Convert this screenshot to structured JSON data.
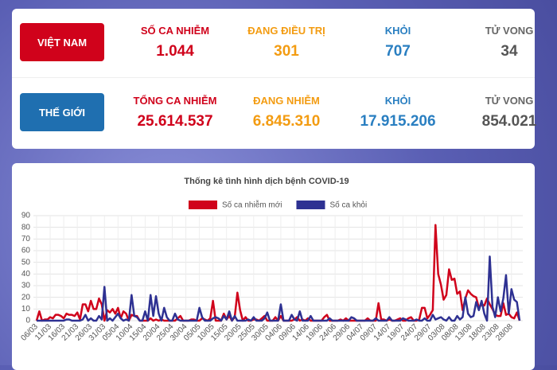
{
  "stats": {
    "vietnam": {
      "label": "VIỆT NAM",
      "items": [
        {
          "label": "SỐ CA NHIỄM",
          "value": "1.044"
        },
        {
          "label": "ĐANG ĐIỀU TRỊ",
          "value": "301"
        },
        {
          "label": "KHỎI",
          "value": "707"
        },
        {
          "label": "TỬ VONG",
          "value": "34"
        }
      ]
    },
    "world": {
      "label": "THẾ GIỚI",
      "items": [
        {
          "label": "TỔNG CA NHIỄM",
          "value": "25.614.537"
        },
        {
          "label": "ĐANG NHIỄM",
          "value": "6.845.310"
        },
        {
          "label": "KHỎI",
          "value": "17.915.206"
        },
        {
          "label": "TỬ VONG",
          "value": "854.021"
        }
      ]
    }
  },
  "chart_data": {
    "type": "line",
    "title": "Thống kê tình hình dịch bệnh COVID-19",
    "categories": [
      "06/03",
      null,
      null,
      null,
      null,
      "11/03",
      null,
      null,
      null,
      null,
      "16/03",
      null,
      null,
      null,
      null,
      "21/03",
      null,
      null,
      null,
      null,
      "26/03",
      null,
      null,
      null,
      null,
      "31/03",
      null,
      null,
      null,
      null,
      "05/04",
      null,
      null,
      null,
      null,
      "10/04",
      null,
      null,
      null,
      null,
      "15/04",
      null,
      null,
      null,
      null,
      "20/04",
      null,
      null,
      null,
      null,
      "25/04",
      null,
      null,
      null,
      null,
      "30/04",
      null,
      null,
      null,
      null,
      "05/05",
      null,
      null,
      null,
      null,
      "10/05",
      null,
      null,
      null,
      null,
      "15/05",
      null,
      null,
      null,
      null,
      "20/05",
      null,
      null,
      null,
      null,
      "25/05",
      null,
      null,
      null,
      null,
      "30/05",
      null,
      null,
      null,
      null,
      "04/06",
      null,
      null,
      null,
      null,
      "09/06",
      null,
      null,
      null,
      null,
      "14/06",
      null,
      null,
      null,
      null,
      "19/06",
      null,
      null,
      null,
      null,
      "24/06",
      null,
      null,
      null,
      null,
      "29/06",
      null,
      null,
      null,
      null,
      "04/07",
      null,
      null,
      null,
      null,
      "09/07",
      null,
      null,
      null,
      null,
      "14/07",
      null,
      null,
      null,
      null,
      "19/07",
      null,
      null,
      null,
      null,
      "24/07",
      null,
      null,
      null,
      null,
      "29/07",
      null,
      null,
      null,
      null,
      "03/08",
      null,
      null,
      null,
      null,
      "08/08",
      null,
      null,
      null,
      null,
      "13/08",
      null,
      null,
      null,
      null,
      "18/08",
      null,
      null,
      null,
      null,
      "23/08",
      null,
      null,
      null,
      null,
      "28/08",
      null,
      null,
      null
    ],
    "series": [
      {
        "name": "Số ca nhiễm mới",
        "color": "#d0021b",
        "values": [
          0,
          8,
          0,
          1,
          1,
          3,
          2,
          5,
          5,
          4,
          2,
          6,
          5,
          5,
          4,
          7,
          1,
          14,
          14,
          8,
          17,
          10,
          10,
          19,
          14,
          0,
          9,
          7,
          10,
          6,
          11,
          2,
          8,
          6,
          0,
          5,
          4,
          4,
          0,
          0,
          0,
          0,
          2,
          0,
          1,
          0,
          1,
          0,
          0,
          0,
          0,
          0,
          2,
          4,
          0,
          0,
          0,
          1,
          1,
          0,
          0,
          2,
          1,
          0,
          2,
          17,
          0,
          0,
          0,
          6,
          1,
          4,
          0,
          3,
          24,
          9,
          0,
          3,
          0,
          0,
          1,
          1,
          0,
          2,
          4,
          0,
          0,
          0,
          3,
          0,
          4,
          0,
          0,
          0,
          0,
          1,
          3,
          0,
          1,
          0,
          2,
          0,
          0,
          0,
          0,
          0,
          3,
          5,
          0,
          0,
          0,
          0,
          1,
          0,
          2,
          0,
          0,
          0,
          0,
          0,
          0,
          0,
          2,
          0,
          0,
          0,
          15,
          1,
          1,
          0,
          1,
          0,
          0,
          1,
          2,
          0,
          0,
          2,
          3,
          0,
          0,
          1,
          11,
          11,
          2,
          5,
          9,
          82,
          40,
          31,
          18,
          22,
          44,
          35,
          36,
          23,
          25,
          9,
          19,
          26,
          23,
          21,
          20,
          11,
          14,
          13,
          19,
          14,
          10,
          5,
          4,
          4,
          15,
          5,
          6,
          3,
          2,
          7,
          0
        ]
      },
      {
        "name": "Số ca khỏi",
        "color": "#2e3192",
        "values": [
          0,
          0,
          0,
          0,
          0,
          0,
          0,
          0,
          0,
          0,
          0,
          1,
          1,
          0,
          0,
          0,
          0,
          1,
          5,
          0,
          2,
          0,
          0,
          4,
          1,
          29,
          0,
          2,
          0,
          3,
          6,
          2,
          0,
          1,
          0,
          22,
          4,
          3,
          0,
          0,
          8,
          0,
          22,
          4,
          21,
          6,
          0,
          11,
          3,
          0,
          0,
          6,
          1,
          0,
          0,
          0,
          0,
          0,
          0,
          0,
          11,
          3,
          0,
          0,
          0,
          2,
          3,
          2,
          0,
          4,
          1,
          8,
          0,
          4,
          0,
          0,
          0,
          0,
          1,
          0,
          3,
          0,
          0,
          0,
          2,
          7,
          0,
          0,
          0,
          0,
          14,
          0,
          0,
          0,
          5,
          1,
          0,
          8,
          0,
          0,
          0,
          4,
          0,
          0,
          0,
          0,
          0,
          0,
          2,
          0,
          0,
          0,
          0,
          0,
          0,
          0,
          3,
          2,
          0,
          0,
          0,
          0,
          0,
          0,
          0,
          2,
          0,
          0,
          0,
          0,
          3,
          0,
          0,
          0,
          0,
          2,
          1,
          0,
          0,
          0,
          1,
          0,
          0,
          2,
          0,
          0,
          5,
          1,
          2,
          3,
          1,
          0,
          3,
          0,
          0,
          4,
          1,
          3,
          20,
          6,
          3,
          4,
          16,
          9,
          17,
          6,
          0,
          55,
          12,
          3,
          20,
          8,
          19,
          39,
          6,
          27,
          18,
          16,
          0
        ]
      }
    ],
    "ylim": [
      0,
      90
    ],
    "yticks": [
      0,
      10,
      20,
      30,
      40,
      50,
      60,
      70,
      80,
      90
    ],
    "grid": true,
    "legend": "top"
  }
}
